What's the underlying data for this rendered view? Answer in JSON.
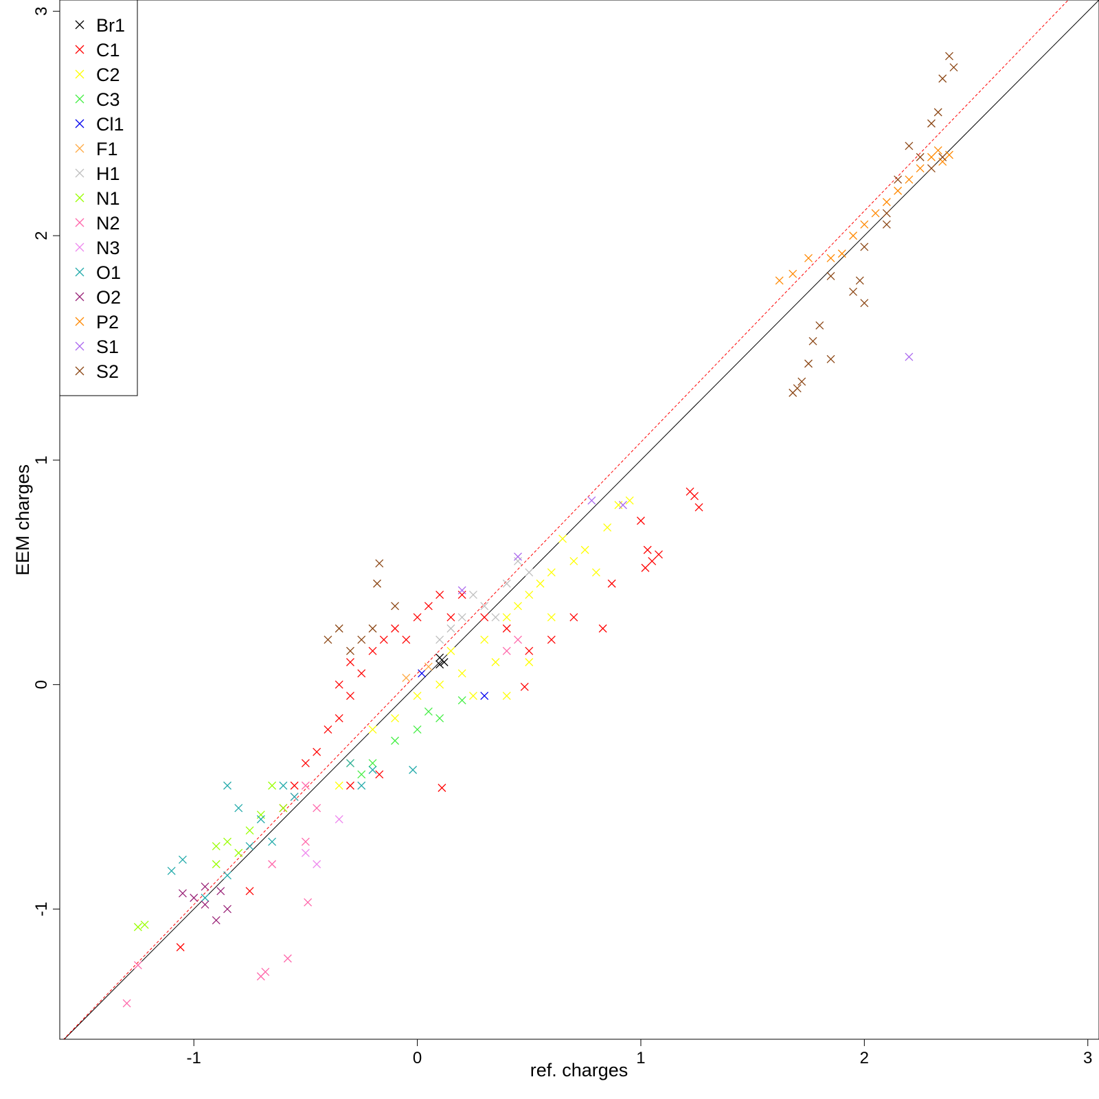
{
  "chart_data": {
    "type": "scatter",
    "title": "",
    "xlabel": "ref. charges",
    "ylabel": "EEM charges",
    "xlim": [
      -1.6,
      3.05
    ],
    "ylim": [
      -1.58,
      3.05
    ],
    "xticks": [
      "-1",
      "0",
      "1",
      "2",
      "3"
    ],
    "yticks": [
      "-1",
      "0",
      "1",
      "2",
      "3"
    ],
    "xtick_values": [
      -1,
      0,
      1,
      2,
      3
    ],
    "ytick_values": [
      -1,
      0,
      1,
      2,
      3
    ],
    "grid": false,
    "legend_position": "top-left",
    "marker": "x",
    "reference_lines": [
      {
        "name": "",
        "slope": 1.0,
        "intercept": 0.0,
        "color": "#000000",
        "style": "solid"
      },
      {
        "name": "",
        "slope": 1.03,
        "intercept": 0.05,
        "color": "#ff0000",
        "style": "dashed"
      }
    ],
    "series": [
      {
        "name": "Br1",
        "color": "#000000",
        "points": [
          [
            0.1,
            0.12
          ],
          [
            0.12,
            0.1
          ],
          [
            0.1,
            0.09
          ]
        ]
      },
      {
        "name": "C1",
        "color": "#ff0000",
        "points": [
          [
            -0.4,
            -0.2
          ],
          [
            -0.35,
            -0.15
          ],
          [
            -0.3,
            -0.05
          ],
          [
            -0.25,
            0.05
          ],
          [
            -0.2,
            0.15
          ],
          [
            -0.15,
            0.2
          ],
          [
            -0.1,
            0.25
          ],
          [
            -0.05,
            0.2
          ],
          [
            0.0,
            0.3
          ],
          [
            0.05,
            0.35
          ],
          [
            0.1,
            0.4
          ],
          [
            -0.45,
            -0.3
          ],
          [
            -0.5,
            -0.35
          ],
          [
            -0.55,
            -0.45
          ],
          [
            -0.6,
            -0.55
          ],
          [
            -0.35,
            0.0
          ],
          [
            -0.3,
            0.1
          ],
          [
            0.15,
            0.3
          ],
          [
            0.2,
            0.4
          ],
          [
            0.3,
            0.3
          ],
          [
            0.4,
            0.25
          ],
          [
            0.5,
            0.15
          ],
          [
            0.6,
            0.2
          ],
          [
            0.7,
            0.3
          ],
          [
            1.03,
            0.6
          ],
          [
            1.05,
            0.55
          ],
          [
            1.08,
            0.58
          ],
          [
            1.02,
            0.52
          ],
          [
            1.26,
            0.79
          ],
          [
            1.22,
            0.86
          ],
          [
            1.24,
            0.84
          ],
          [
            0.48,
            -0.01
          ],
          [
            -1.06,
            -1.17
          ],
          [
            -0.75,
            -0.92
          ],
          [
            -0.17,
            -0.4
          ],
          [
            0.11,
            -0.46
          ],
          [
            -0.3,
            -0.45
          ],
          [
            0.83,
            0.25
          ],
          [
            0.87,
            0.45
          ],
          [
            1.0,
            0.73
          ]
        ]
      },
      {
        "name": "C2",
        "color": "#ffff00",
        "points": [
          [
            0.3,
            0.2
          ],
          [
            0.4,
            0.3
          ],
          [
            0.5,
            0.4
          ],
          [
            0.6,
            0.5
          ],
          [
            0.7,
            0.55
          ],
          [
            0.75,
            0.6
          ],
          [
            0.8,
            0.5
          ],
          [
            0.65,
            0.65
          ],
          [
            0.55,
            0.45
          ],
          [
            0.45,
            0.35
          ],
          [
            0.35,
            0.1
          ],
          [
            0.2,
            0.05
          ],
          [
            0.1,
            0.0
          ],
          [
            0.0,
            -0.05
          ],
          [
            -0.1,
            -0.15
          ],
          [
            -0.2,
            -0.2
          ],
          [
            0.25,
            -0.05
          ],
          [
            0.15,
            0.15
          ],
          [
            0.5,
            0.1
          ],
          [
            0.6,
            0.3
          ],
          [
            0.85,
            0.7
          ],
          [
            0.9,
            0.8
          ],
          [
            0.95,
            0.82
          ],
          [
            0.4,
            -0.05
          ],
          [
            -0.3,
            -0.35
          ],
          [
            -0.35,
            -0.45
          ]
        ]
      },
      {
        "name": "C3",
        "color": "#44ee44",
        "points": [
          [
            -0.25,
            -0.4
          ],
          [
            -0.2,
            -0.35
          ],
          [
            0.0,
            -0.2
          ],
          [
            0.1,
            -0.15
          ],
          [
            0.2,
            -0.07
          ],
          [
            -0.1,
            -0.25
          ],
          [
            0.05,
            -0.12
          ]
        ]
      },
      {
        "name": "Cl1",
        "color": "#0000ee",
        "points": [
          [
            0.02,
            0.05
          ],
          [
            0.3,
            -0.05
          ]
        ]
      },
      {
        "name": "F1",
        "color": "#ffaa44",
        "points": [
          [
            -0.05,
            0.03
          ],
          [
            0.05,
            0.08
          ]
        ]
      },
      {
        "name": "H1",
        "color": "#bebebe",
        "points": [
          [
            0.1,
            0.2
          ],
          [
            0.2,
            0.3
          ],
          [
            0.3,
            0.35
          ],
          [
            0.4,
            0.45
          ],
          [
            0.5,
            0.5
          ],
          [
            0.15,
            0.25
          ],
          [
            0.25,
            0.4
          ],
          [
            0.35,
            0.3
          ],
          [
            0.45,
            0.55
          ]
        ]
      },
      {
        "name": "N1",
        "color": "#99ff00",
        "points": [
          [
            -0.85,
            -0.7
          ],
          [
            -0.8,
            -0.75
          ],
          [
            -0.75,
            -0.65
          ],
          [
            -0.9,
            -0.8
          ],
          [
            -0.7,
            -0.58
          ],
          [
            -1.25,
            -1.08
          ],
          [
            -1.22,
            -1.07
          ],
          [
            -0.65,
            -0.45
          ],
          [
            -0.6,
            -0.55
          ],
          [
            -0.9,
            -0.72
          ]
        ]
      },
      {
        "name": "N2",
        "color": "#ff66aa",
        "points": [
          [
            -0.55,
            -0.5
          ],
          [
            -0.5,
            -0.45
          ],
          [
            -0.45,
            -0.55
          ],
          [
            -0.7,
            -1.3
          ],
          [
            -0.68,
            -1.28
          ],
          [
            -1.3,
            -1.42
          ],
          [
            -1.25,
            -1.25
          ],
          [
            -0.5,
            -0.7
          ],
          [
            0.45,
            0.2
          ],
          [
            0.4,
            0.15
          ],
          [
            -0.58,
            -1.22
          ],
          [
            -0.49,
            -0.97
          ],
          [
            -0.65,
            -0.8
          ]
        ]
      },
      {
        "name": "N3",
        "color": "#ee88ee",
        "points": [
          [
            -0.5,
            -0.75
          ],
          [
            -0.45,
            -0.8
          ],
          [
            -0.35,
            -0.6
          ]
        ]
      },
      {
        "name": "O1",
        "color": "#22aaaa",
        "points": [
          [
            -0.7,
            -0.6
          ],
          [
            -0.65,
            -0.7
          ],
          [
            -0.75,
            -0.72
          ],
          [
            -0.85,
            -0.85
          ],
          [
            -0.95,
            -0.95
          ],
          [
            -1.05,
            -0.78
          ],
          [
            -1.1,
            -0.83
          ],
          [
            -0.6,
            -0.45
          ],
          [
            -0.55,
            -0.5
          ],
          [
            -0.25,
            -0.45
          ],
          [
            -0.2,
            -0.38
          ],
          [
            -0.3,
            -0.35
          ],
          [
            -0.8,
            -0.55
          ],
          [
            -0.85,
            -0.45
          ],
          [
            -0.02,
            -0.38
          ]
        ]
      },
      {
        "name": "O2",
        "color": "#992277",
        "points": [
          [
            -1.0,
            -0.95
          ],
          [
            -0.95,
            -0.98
          ],
          [
            -0.9,
            -1.05
          ],
          [
            -0.88,
            -0.92
          ],
          [
            -0.85,
            -1.0
          ],
          [
            -0.95,
            -0.9
          ],
          [
            -1.05,
            -0.93
          ]
        ]
      },
      {
        "name": "P2",
        "color": "#ff8800",
        "points": [
          [
            2.3,
            2.35
          ],
          [
            2.35,
            2.33
          ],
          [
            2.25,
            2.3
          ],
          [
            2.2,
            2.25
          ],
          [
            2.15,
            2.2
          ],
          [
            2.1,
            2.15
          ],
          [
            2.0,
            2.05
          ],
          [
            1.95,
            2.0
          ],
          [
            1.9,
            1.92
          ],
          [
            1.85,
            1.9
          ],
          [
            1.75,
            1.9
          ],
          [
            1.68,
            1.83
          ],
          [
            1.62,
            1.8
          ],
          [
            2.33,
            2.38
          ],
          [
            2.38,
            2.36
          ],
          [
            2.05,
            2.1
          ]
        ]
      },
      {
        "name": "S1",
        "color": "#aa66ee",
        "points": [
          [
            0.92,
            0.8
          ],
          [
            0.78,
            0.82
          ],
          [
            0.2,
            0.42
          ],
          [
            0.45,
            0.57
          ],
          [
            2.2,
            1.46
          ]
        ]
      },
      {
        "name": "S2",
        "color": "#8b4513",
        "points": [
          [
            2.4,
            2.75
          ],
          [
            2.38,
            2.8
          ],
          [
            2.35,
            2.7
          ],
          [
            2.33,
            2.55
          ],
          [
            2.3,
            2.5
          ],
          [
            2.25,
            2.35
          ],
          [
            2.2,
            2.4
          ],
          [
            2.15,
            2.25
          ],
          [
            2.1,
            2.1
          ],
          [
            2.0,
            1.95
          ],
          [
            1.98,
            1.8
          ],
          [
            2.0,
            1.7
          ],
          [
            1.95,
            1.75
          ],
          [
            1.85,
            1.82
          ],
          [
            1.8,
            1.6
          ],
          [
            1.77,
            1.53
          ],
          [
            1.85,
            1.45
          ],
          [
            1.7,
            1.32
          ],
          [
            1.68,
            1.3
          ],
          [
            1.72,
            1.35
          ],
          [
            1.75,
            1.43
          ],
          [
            -0.25,
            0.2
          ],
          [
            -0.3,
            0.15
          ],
          [
            -0.35,
            0.25
          ],
          [
            -0.2,
            0.25
          ],
          [
            -0.18,
            0.45
          ],
          [
            -0.17,
            0.54
          ],
          [
            -0.4,
            0.2
          ],
          [
            -0.1,
            0.35
          ],
          [
            2.3,
            2.3
          ],
          [
            2.35,
            2.35
          ],
          [
            2.1,
            2.05
          ]
        ]
      }
    ]
  }
}
